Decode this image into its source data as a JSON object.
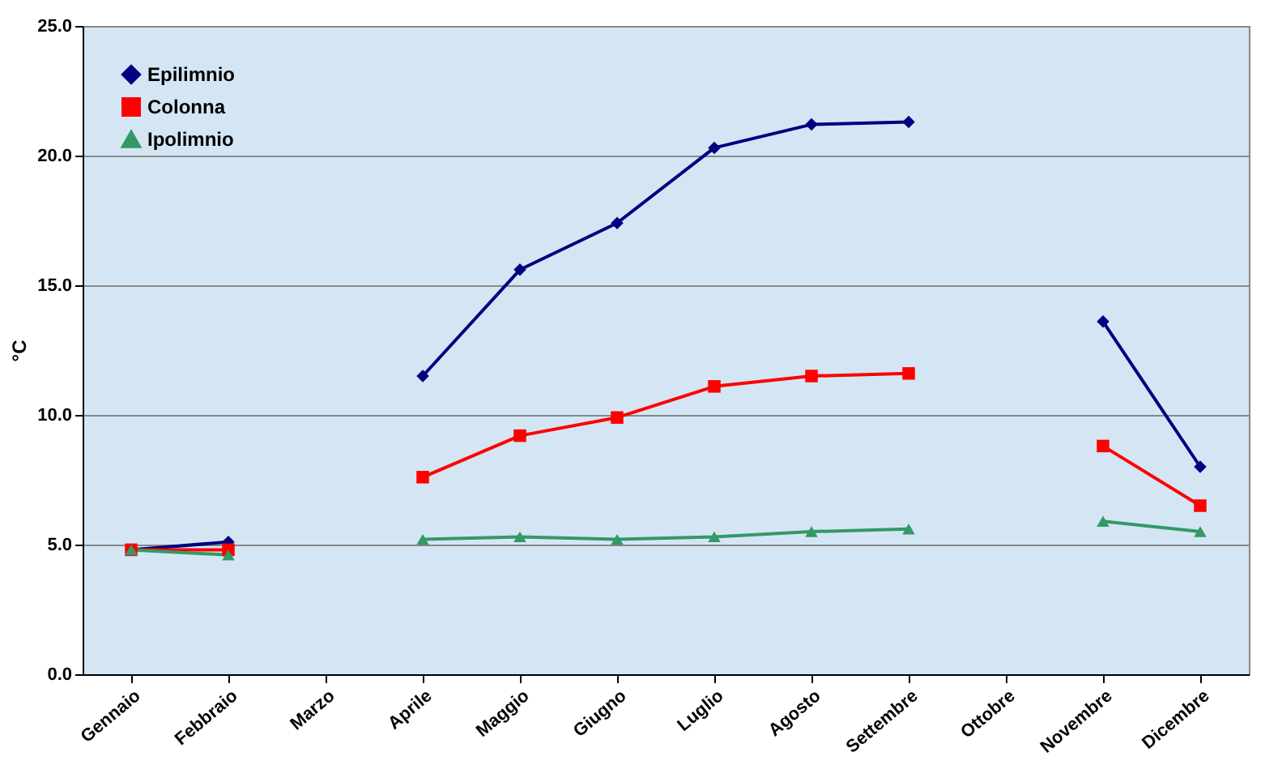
{
  "chart_data": {
    "type": "line",
    "ylabel": "°C",
    "categories": [
      "Gennaio",
      "Febbraio",
      "Marzo",
      "Aprile",
      "Maggio",
      "Giugno",
      "Luglio",
      "Agosto",
      "Settembre",
      "Ottobre",
      "Novembre",
      "Dicembre"
    ],
    "series": [
      {
        "name": "Epilimnio",
        "color": "#000080",
        "marker": "diamond",
        "values": [
          4.8,
          5.1,
          null,
          11.5,
          15.6,
          17.4,
          20.3,
          21.2,
          21.3,
          null,
          13.6,
          8.0
        ]
      },
      {
        "name": "Colonna",
        "color": "#ff0000",
        "marker": "square",
        "values": [
          4.8,
          4.8,
          null,
          7.6,
          9.2,
          9.9,
          11.1,
          11.5,
          11.6,
          null,
          8.8,
          6.5
        ]
      },
      {
        "name": "Ipolimnio",
        "color": "#339966",
        "marker": "triangle",
        "values": [
          4.8,
          4.6,
          null,
          5.2,
          5.3,
          5.2,
          5.3,
          5.5,
          5.6,
          null,
          5.9,
          5.5
        ]
      }
    ],
    "ylim": [
      0,
      25
    ],
    "yticks": [
      {
        "value": 0,
        "label": "0.0"
      },
      {
        "value": 5,
        "label": "5.0"
      },
      {
        "value": 10,
        "label": "10.0"
      },
      {
        "value": 15,
        "label": "15.0"
      },
      {
        "value": 20,
        "label": "20.0"
      },
      {
        "value": 25,
        "label": "25.0"
      }
    ],
    "grid": "y",
    "legend": "top left",
    "line_style": "solid"
  }
}
